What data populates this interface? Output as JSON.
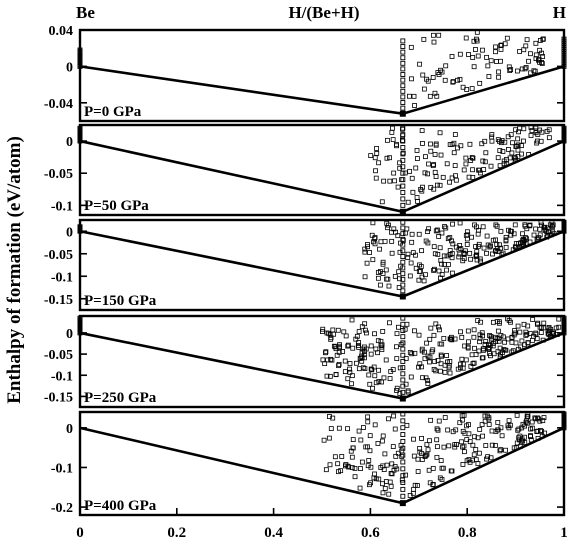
{
  "figure": {
    "top_left_label": "Be",
    "top_center_label": "H/(Be+H)",
    "top_right_label": "H",
    "ylabel": "Enthalpy of formation (eV/atom)"
  },
  "chart_data": [
    {
      "type": "scatter",
      "panel_label": "P=0 GPa",
      "ylim": [
        -0.06,
        0.04
      ],
      "yticks": [
        0.04,
        0,
        -0.04
      ],
      "ytick_labels": [
        "0.04",
        "0",
        "-0.04"
      ],
      "hull_x": [
        0,
        0.667,
        1
      ],
      "hull_y": [
        0,
        -0.052,
        0
      ],
      "candidates": {
        "col_x": [
          0,
          0.667,
          1
        ],
        "col_top": [
          0.018,
          0.028,
          0.03
        ],
        "cloud_x_range": [
          0.68,
          0.96
        ],
        "cloud_y_top": 0.038,
        "n_points": 90,
        "marker": "open-square"
      }
    },
    {
      "type": "scatter",
      "panel_label": "P=50 GPa",
      "ylim": [
        -0.115,
        0.025
      ],
      "yticks": [
        0,
        -0.05,
        -0.1
      ],
      "ytick_labels": [
        "0",
        "-0.05",
        "-0.1"
      ],
      "hull_x": [
        0,
        0.667,
        1
      ],
      "hull_y": [
        0,
        -0.11,
        0
      ],
      "candidates": {
        "col_x": [
          0,
          0.667,
          1
        ],
        "col_top": [
          0.02,
          0.02,
          0.02
        ],
        "cloud_x_range": [
          0.6,
          0.97
        ],
        "cloud_y_top": 0.022,
        "n_points": 150,
        "marker": "open-square"
      }
    },
    {
      "type": "scatter",
      "panel_label": "P=150 GPa",
      "ylim": [
        -0.175,
        0.025
      ],
      "yticks": [
        0,
        -0.05,
        -0.1,
        -0.15
      ],
      "ytick_labels": [
        "0",
        "-0.05",
        "-0.1",
        "-0.15"
      ],
      "hull_x": [
        0,
        0.667,
        1
      ],
      "hull_y": [
        0,
        -0.145,
        0
      ],
      "candidates": {
        "col_x": [
          0,
          0.667,
          1
        ],
        "col_top": [
          0.01,
          0.02,
          0.02
        ],
        "cloud_x_range": [
          0.58,
          0.98
        ],
        "cloud_y_top": 0.02,
        "n_points": 220,
        "marker": "open-square"
      }
    },
    {
      "type": "scatter",
      "panel_label": "P=250 GPa",
      "ylim": [
        -0.175,
        0.04
      ],
      "yticks": [
        0,
        -0.05,
        -0.1,
        -0.15
      ],
      "ytick_labels": [
        "0",
        "-0.05",
        "-0.1",
        "-0.15"
      ],
      "hull_x": [
        0,
        0.667,
        1
      ],
      "hull_y": [
        0,
        -0.155,
        0
      ],
      "candidates": {
        "col_x": [
          0,
          0.667,
          1
        ],
        "col_top": [
          0.035,
          0.035,
          0.035
        ],
        "cloud_x_range": [
          0.5,
          0.99
        ],
        "cloud_y_top": 0.035,
        "n_points": 300,
        "marker": "open-square"
      }
    },
    {
      "type": "scatter",
      "panel_label": "P=400 GPa",
      "ylim": [
        -0.22,
        0.04
      ],
      "yticks": [
        0,
        -0.1,
        -0.2
      ],
      "ytick_labels": [
        "0",
        "-0.1",
        "-0.2"
      ],
      "hull_x": [
        0,
        0.667,
        1
      ],
      "hull_y": [
        0,
        -0.19,
        0
      ],
      "candidates": {
        "col_x": [
          0.667,
          1
        ],
        "col_top": [
          0.035,
          0.035
        ],
        "cloud_x_range": [
          0.5,
          0.96
        ],
        "cloud_y_top": 0.035,
        "n_points": 230,
        "marker": "open-square"
      }
    }
  ],
  "xaxis": {
    "xlim": [
      0,
      1
    ],
    "ticks": [
      0,
      0.2,
      0.4,
      0.6,
      0.8,
      1
    ],
    "tick_labels": [
      "0",
      "0.2",
      "0.4",
      "0.6",
      "0.8",
      "1"
    ]
  }
}
